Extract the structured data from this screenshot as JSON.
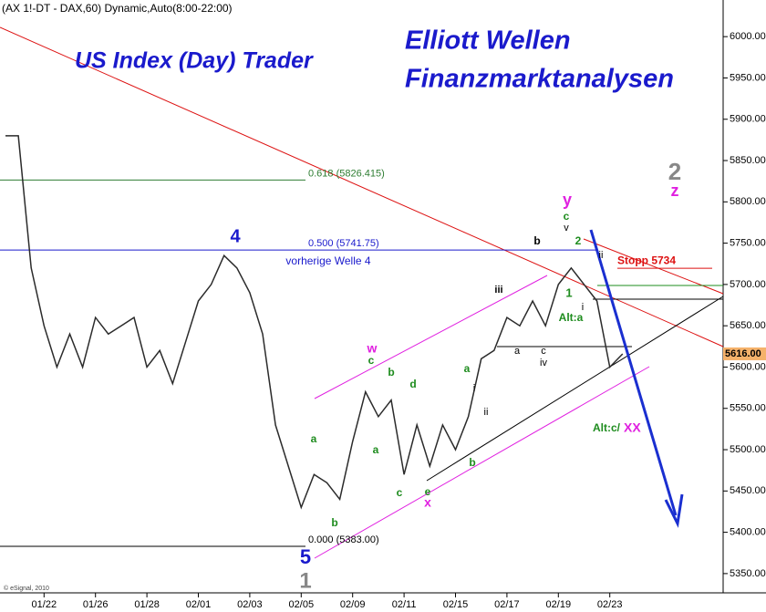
{
  "chart_data": {
    "type": "line",
    "title": "(AX 1!-DT - DAX,60) Dynamic,Auto(8:00-22:00)",
    "subtitle": "US Index (Day) Trader",
    "brand_line1": "Elliott Wellen",
    "brand_line2": "Finanzmarktanalysen",
    "copyright": "© eSignal, 2010",
    "categories": [
      null,
      null,
      null,
      "01/22",
      null,
      null,
      null,
      "01/26",
      null,
      null,
      null,
      "01/28",
      null,
      null,
      null,
      "02/01",
      null,
      null,
      null,
      "02/03",
      null,
      null,
      null,
      "02/05",
      null,
      null,
      null,
      "02/09",
      null,
      null,
      null,
      "02/11",
      null,
      null,
      null,
      "02/15",
      null,
      null,
      null,
      "02/17",
      null,
      null,
      null,
      "02/19",
      null,
      null,
      null,
      "02/23",
      null
    ],
    "series": [
      {
        "name": "DAX",
        "color": "#2b2b2b",
        "values": [
          5880,
          5880,
          5720,
          5650,
          5600,
          5640,
          5600,
          5660,
          5640,
          5650,
          5660,
          5600,
          5620,
          5580,
          5630,
          5680,
          5700,
          5735,
          5720,
          5690,
          5640,
          5530,
          5480,
          5430,
          5470,
          5460,
          5440,
          5510,
          5570,
          5540,
          5560,
          5470,
          5530,
          5480,
          5530,
          5500,
          5540,
          5610,
          5620,
          5660,
          5650,
          5680,
          5650,
          5700,
          5720,
          5700,
          5680,
          5600,
          5616
        ]
      }
    ],
    "ylim": [
      5330,
      6030
    ],
    "yticks": [
      {
        "value": 5350,
        "label": "5350.00"
      },
      {
        "value": 5400,
        "label": "5400.00"
      },
      {
        "value": 5450,
        "label": "5450.00"
      },
      {
        "value": 5500,
        "label": "5500.00"
      },
      {
        "value": 5550,
        "label": "5550.00"
      },
      {
        "value": 5600,
        "label": "5600.00"
      },
      {
        "value": 5650,
        "label": "5650.00"
      },
      {
        "value": 5700,
        "label": "5700.00"
      },
      {
        "value": 5750,
        "label": "5750.00"
      },
      {
        "value": 5800,
        "label": "5800.00"
      },
      {
        "value": 5850,
        "label": "5850.00"
      },
      {
        "value": 5900,
        "label": "5900.00"
      },
      {
        "value": 5950,
        "label": "5950.00"
      },
      {
        "value": 6000,
        "label": "6000.00"
      }
    ],
    "fib_levels": [
      {
        "value": 5826.415,
        "label": "0.618 (5826.415)",
        "color": "#2e7d32"
      },
      {
        "value": 5741.75,
        "label": "0.500 (5741.75)",
        "color": "#1a1acc"
      },
      {
        "value": 5383,
        "label": "0.000 (5383.00)",
        "color": "#000000"
      }
    ],
    "stop": {
      "value": 5734,
      "label": "Stopp 5734",
      "color": "#dd1111"
    },
    "last_price": {
      "value": 5616,
      "label": "5616.00"
    },
    "annotations": [
      {
        "text": "vorherige Welle 4",
        "color": "#1a1acc"
      },
      {
        "text": "4",
        "color": "#1a1acc"
      },
      {
        "text": "5",
        "color": "#1a1acc"
      },
      {
        "text": "1",
        "color": "#888888"
      },
      {
        "text": "2",
        "color": "#888888"
      },
      {
        "text": "z",
        "color": "#e020e0"
      },
      {
        "text": "y",
        "color": "#e020e0"
      },
      {
        "text": "w",
        "color": "#e020e0"
      },
      {
        "text": "x",
        "color": "#e020e0"
      },
      {
        "text": "c",
        "color": "#1e8c1e"
      },
      {
        "text": "v",
        "color": "#000000"
      },
      {
        "text": "2",
        "color": "#1e8c1e"
      },
      {
        "text": "1",
        "color": "#1e8c1e"
      },
      {
        "text": "i",
        "color": "#000000"
      },
      {
        "text": "ii",
        "color": "#000000"
      },
      {
        "text": "b",
        "color": "#000000"
      },
      {
        "text": "iii",
        "color": "#000000"
      },
      {
        "text": "a",
        "color": "#000000"
      },
      {
        "text": "c",
        "color": "#000000"
      },
      {
        "text": "iv",
        "color": "#000000"
      },
      {
        "text": "a",
        "color": "#1e8c1e"
      },
      {
        "text": "i",
        "color": "#000000"
      },
      {
        "text": "ii",
        "color": "#000000"
      },
      {
        "text": "b",
        "color": "#1e8c1e"
      },
      {
        "text": "b",
        "color": "#1e8c1e"
      },
      {
        "text": "d",
        "color": "#1e8c1e"
      },
      {
        "text": "c",
        "color": "#1e8c1e"
      },
      {
        "text": "a",
        "color": "#1e8c1e"
      },
      {
        "text": "a",
        "color": "#1e8c1e"
      },
      {
        "text": "b",
        "color": "#1e8c1e"
      },
      {
        "text": "c",
        "color": "#1e8c1e"
      },
      {
        "text": "e",
        "color": "#1e8c1e"
      },
      {
        "text": "Alt:a",
        "color": "#1e8c1e"
      },
      {
        "text": "Alt:c/",
        "color": "#1e8c1e"
      },
      {
        "text": "XX",
        "color": "#e020e0"
      }
    ]
  }
}
